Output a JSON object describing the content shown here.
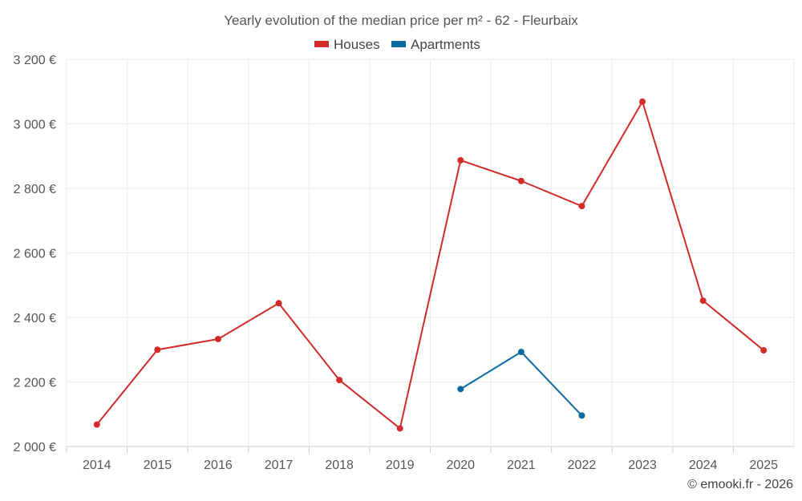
{
  "chart_data": {
    "type": "line",
    "title": "Yearly evolution of the median price per m² - 62 - Fleurbaix",
    "categories": [
      "2014",
      "2015",
      "2016",
      "2017",
      "2018",
      "2019",
      "2020",
      "2021",
      "2022",
      "2023",
      "2024",
      "2025"
    ],
    "ylim": [
      2000,
      3200
    ],
    "yticks": [
      2000,
      2200,
      2400,
      2600,
      2800,
      3000,
      3200
    ],
    "ytick_labels": [
      "2 000 €",
      "2 200 €",
      "2 400 €",
      "2 600 €",
      "2 800 €",
      "3 000 €",
      "3 200 €"
    ],
    "grid": true,
    "legend_position": "top-center",
    "series": [
      {
        "name": "Houses",
        "color": "#d32a2a",
        "values": [
          2068,
          2300,
          2333,
          2444,
          2206,
          2056,
          2887,
          2823,
          2745,
          3069,
          2452,
          2298
        ]
      },
      {
        "name": "Apartments",
        "color": "#0b6aa1",
        "values": [
          null,
          null,
          null,
          null,
          null,
          null,
          2178,
          2293,
          2096,
          null,
          null,
          null
        ]
      }
    ],
    "credit": "© emooki.fr - 2026"
  }
}
